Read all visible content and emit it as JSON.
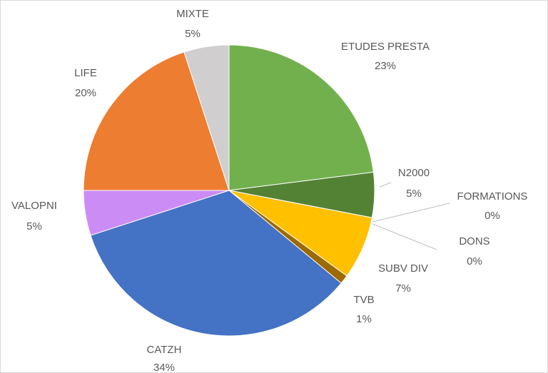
{
  "chart_data": {
    "type": "pie",
    "categories": [
      "ETUDES PRESTA",
      "N2000",
      "FORMATIONS",
      "DONS",
      "SUBV DIV",
      "TVB",
      "CATZH",
      "VALOPNI",
      "LIFE",
      "MIXTE"
    ],
    "values": [
      23,
      5,
      0,
      0,
      7,
      1,
      34,
      5,
      20,
      5
    ],
    "value_labels": [
      "23%",
      "5%",
      "0%",
      "0%",
      "7%",
      "1%",
      "34%",
      "5%",
      "20%",
      "5%"
    ],
    "colors": [
      "#72b04d",
      "#548235",
      "#a9d18e",
      "#c5e0b4",
      "#ffc000",
      "#9c6a00",
      "#4472c4",
      "#cc8cf5",
      "#ed7d31",
      "#d0cece"
    ]
  }
}
